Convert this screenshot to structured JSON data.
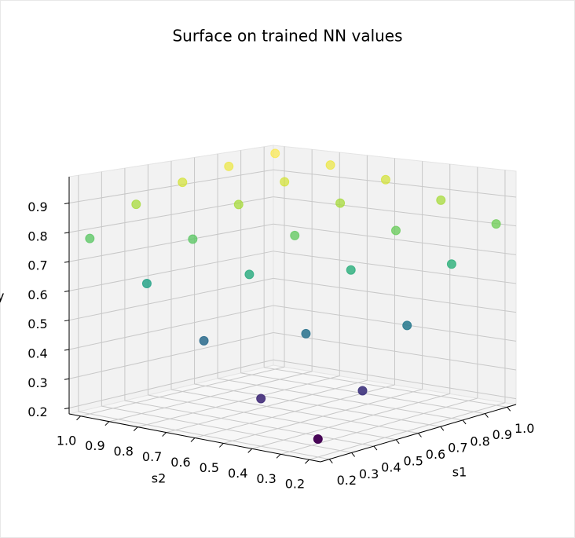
{
  "chart_data": {
    "type": "scatter3d",
    "title": "Surface on trained NN values",
    "xlabel": "s1",
    "ylabel": "s2",
    "zlabel": "y",
    "x": [
      0.2,
      0.2,
      0.2,
      0.2,
      0.2,
      0.4,
      0.4,
      0.4,
      0.4,
      0.4,
      0.6,
      0.6,
      0.6,
      0.6,
      0.6,
      0.8,
      0.8,
      0.8,
      0.8,
      0.8,
      1.0,
      1.0,
      1.0,
      1.0,
      1.0
    ],
    "y": [
      0.2,
      0.4,
      0.6,
      0.8,
      1.0,
      0.2,
      0.4,
      0.6,
      0.8,
      1.0,
      0.2,
      0.4,
      0.6,
      0.8,
      1.0,
      0.2,
      0.4,
      0.6,
      0.8,
      1.0,
      0.2,
      0.4,
      0.6,
      0.8,
      1.0
    ],
    "z": [
      0.24,
      0.34,
      0.5,
      0.66,
      0.78,
      0.36,
      0.52,
      0.69,
      0.78,
      0.87,
      0.54,
      0.7,
      0.79,
      0.87,
      0.92,
      0.71,
      0.8,
      0.87,
      0.92,
      0.95,
      0.81,
      0.87,
      0.92,
      0.95,
      0.97
    ],
    "colormap": "viridis",
    "xlim": [
      0.16,
      1.04
    ],
    "ylim": [
      0.16,
      1.04
    ],
    "zlim": [
      0.18,
      0.99
    ],
    "xticks": [
      0.2,
      0.3,
      0.4,
      0.5,
      0.6,
      0.7,
      0.8,
      0.9,
      {
        "value": 1,
        "label": "1.0"
      }
    ],
    "yticks": [
      0.2,
      0.3,
      0.4,
      0.5,
      0.6,
      0.7,
      0.8,
      0.9,
      {
        "value": 1,
        "label": "1.0"
      }
    ],
    "zticks": [
      0.2,
      0.3,
      0.4,
      0.5,
      0.6,
      0.7,
      0.8,
      0.9
    ],
    "grid": true
  }
}
